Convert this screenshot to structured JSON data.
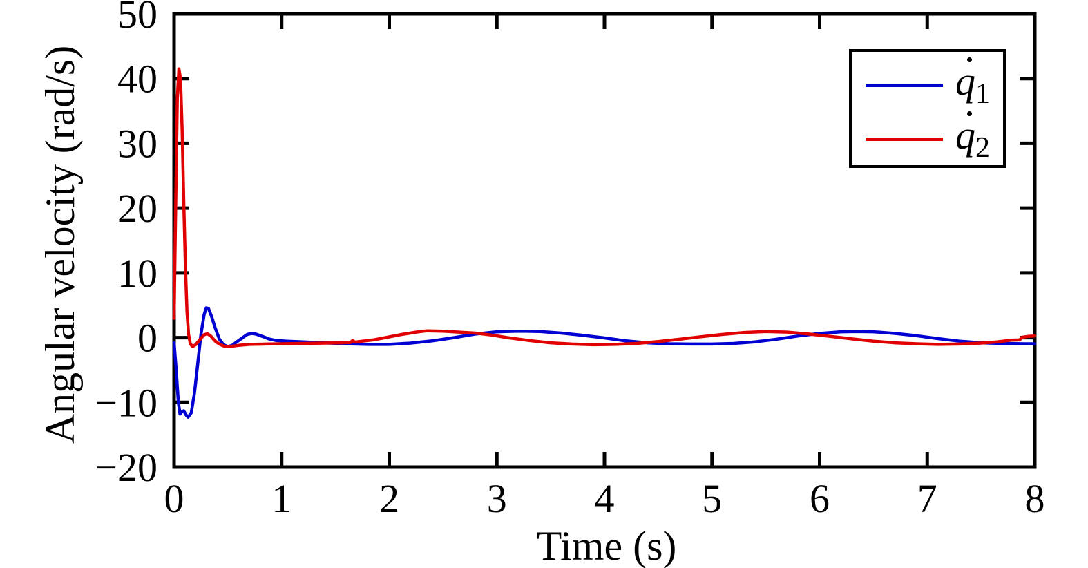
{
  "figure": {
    "background": "#ffffff"
  },
  "chart_data": {
    "type": "line",
    "title": "",
    "xlabel": "Time (s)",
    "ylabel": "Angular velocity (rad/s)",
    "xlim": [
      0,
      8
    ],
    "ylim": [
      -20,
      50
    ],
    "grid": false,
    "axis_color": "#000000",
    "tick_style": "inward-all-four-spines",
    "legend": {
      "position": "top-right",
      "border_color": "#000000",
      "background": "#ffffff"
    },
    "xticks": [
      {
        "v": 0,
        "label": "0"
      },
      {
        "v": 1,
        "label": "1"
      },
      {
        "v": 2,
        "label": "2"
      },
      {
        "v": 3,
        "label": "3"
      },
      {
        "v": 4,
        "label": "4"
      },
      {
        "v": 5,
        "label": "5"
      },
      {
        "v": 6,
        "label": "6"
      },
      {
        "v": 7,
        "label": "7"
      },
      {
        "v": 8,
        "label": "8"
      }
    ],
    "yticks": [
      {
        "v": 50,
        "label": "50"
      },
      {
        "v": 40,
        "label": "40"
      },
      {
        "v": 30,
        "label": "30"
      },
      {
        "v": 20,
        "label": "20"
      },
      {
        "v": 10,
        "label": "10"
      },
      {
        "v": 0,
        "label": "0"
      },
      {
        "v": -10,
        "label": "−10"
      },
      {
        "v": -20,
        "label": "−20"
      }
    ],
    "series": [
      {
        "name": "q1_dot",
        "color": "#0000d2",
        "legend_base": "q",
        "legend_overdot": true,
        "legend_subscript": "1",
        "points": [
          [
            0,
            -0.8
          ],
          [
            0.02,
            -5
          ],
          [
            0.04,
            -10
          ],
          [
            0.055,
            -11.8
          ],
          [
            0.07,
            -11.5
          ],
          [
            0.09,
            -11.3
          ],
          [
            0.11,
            -11.9
          ],
          [
            0.13,
            -12.3
          ],
          [
            0.16,
            -11.6
          ],
          [
            0.19,
            -8.5
          ],
          [
            0.22,
            -4
          ],
          [
            0.25,
            0.5
          ],
          [
            0.28,
            3.6
          ],
          [
            0.3,
            4.6
          ],
          [
            0.32,
            4.5
          ],
          [
            0.35,
            3.2
          ],
          [
            0.38,
            1.6
          ],
          [
            0.42,
            -0.2
          ],
          [
            0.46,
            -1.1
          ],
          [
            0.5,
            -1.4
          ],
          [
            0.54,
            -1.2
          ],
          [
            0.58,
            -0.7
          ],
          [
            0.63,
            -0.1
          ],
          [
            0.68,
            0.5
          ],
          [
            0.72,
            0.65
          ],
          [
            0.76,
            0.55
          ],
          [
            0.82,
            0.2
          ],
          [
            0.88,
            -0.2
          ],
          [
            0.95,
            -0.45
          ],
          [
            1.05,
            -0.55
          ],
          [
            1.2,
            -0.65
          ],
          [
            1.4,
            -0.8
          ],
          [
            1.6,
            -0.95
          ],
          [
            1.8,
            -1.05
          ],
          [
            2.0,
            -1.05
          ],
          [
            2.2,
            -0.85
          ],
          [
            2.4,
            -0.5
          ],
          [
            2.6,
            0.0
          ],
          [
            2.8,
            0.55
          ],
          [
            3.0,
            0.9
          ],
          [
            3.2,
            1.0
          ],
          [
            3.4,
            0.95
          ],
          [
            3.6,
            0.7
          ],
          [
            3.8,
            0.35
          ],
          [
            4.0,
            -0.05
          ],
          [
            4.2,
            -0.5
          ],
          [
            4.4,
            -0.8
          ],
          [
            4.6,
            -0.95
          ],
          [
            4.8,
            -1.0
          ],
          [
            5.0,
            -1.0
          ],
          [
            5.2,
            -0.9
          ],
          [
            5.4,
            -0.65
          ],
          [
            5.6,
            -0.25
          ],
          [
            5.8,
            0.25
          ],
          [
            6.0,
            0.65
          ],
          [
            6.2,
            0.9
          ],
          [
            6.35,
            0.95
          ],
          [
            6.5,
            0.9
          ],
          [
            6.7,
            0.65
          ],
          [
            6.9,
            0.3
          ],
          [
            7.1,
            -0.15
          ],
          [
            7.3,
            -0.55
          ],
          [
            7.5,
            -0.8
          ],
          [
            7.7,
            -0.9
          ],
          [
            7.9,
            -0.95
          ],
          [
            8.0,
            -0.95
          ]
        ]
      },
      {
        "name": "q2_dot",
        "color": "#e10000",
        "legend_base": "q",
        "legend_overdot": true,
        "legend_subscript": "2",
        "points": [
          [
            0,
            3
          ],
          [
            0.015,
            20
          ],
          [
            0.03,
            37
          ],
          [
            0.045,
            41.5
          ],
          [
            0.06,
            40
          ],
          [
            0.075,
            32
          ],
          [
            0.09,
            21
          ],
          [
            0.105,
            11
          ],
          [
            0.12,
            4
          ],
          [
            0.135,
            0.5
          ],
          [
            0.15,
            -0.9
          ],
          [
            0.17,
            -1.4
          ],
          [
            0.2,
            -1.1
          ],
          [
            0.24,
            -0.3
          ],
          [
            0.28,
            0.45
          ],
          [
            0.31,
            0.6
          ],
          [
            0.34,
            0.25
          ],
          [
            0.38,
            -0.5
          ],
          [
            0.42,
            -1.0
          ],
          [
            0.47,
            -1.35
          ],
          [
            0.53,
            -1.35
          ],
          [
            0.6,
            -1.2
          ],
          [
            0.7,
            -1.05
          ],
          [
            0.85,
            -1.0
          ],
          [
            1.0,
            -0.95
          ],
          [
            1.2,
            -0.9
          ],
          [
            1.4,
            -0.85
          ],
          [
            1.55,
            -0.8
          ],
          [
            1.64,
            -0.75
          ],
          [
            1.66,
            -0.45
          ],
          [
            1.68,
            -0.7
          ],
          [
            1.75,
            -0.55
          ],
          [
            1.85,
            -0.35
          ],
          [
            1.95,
            -0.05
          ],
          [
            2.1,
            0.45
          ],
          [
            2.25,
            0.85
          ],
          [
            2.35,
            1.05
          ],
          [
            2.5,
            1.0
          ],
          [
            2.65,
            0.85
          ],
          [
            2.8,
            0.7
          ],
          [
            2.95,
            0.4
          ],
          [
            3.1,
            0.0
          ],
          [
            3.3,
            -0.45
          ],
          [
            3.5,
            -0.8
          ],
          [
            3.7,
            -1.0
          ],
          [
            3.9,
            -1.1
          ],
          [
            4.1,
            -1.05
          ],
          [
            4.3,
            -0.9
          ],
          [
            4.5,
            -0.6
          ],
          [
            4.7,
            -0.25
          ],
          [
            4.9,
            0.15
          ],
          [
            5.1,
            0.5
          ],
          [
            5.3,
            0.8
          ],
          [
            5.5,
            0.95
          ],
          [
            5.7,
            0.85
          ],
          [
            5.9,
            0.55
          ],
          [
            6.1,
            0.2
          ],
          [
            6.3,
            -0.2
          ],
          [
            6.5,
            -0.55
          ],
          [
            6.7,
            -0.8
          ],
          [
            6.9,
            -0.95
          ],
          [
            7.1,
            -1.05
          ],
          [
            7.3,
            -1.0
          ],
          [
            7.5,
            -0.85
          ],
          [
            7.65,
            -0.65
          ],
          [
            7.78,
            -0.4
          ],
          [
            7.86,
            -0.35
          ],
          [
            7.88,
            0.05
          ],
          [
            7.94,
            0.2
          ],
          [
            8.0,
            0.25
          ]
        ]
      }
    ]
  }
}
